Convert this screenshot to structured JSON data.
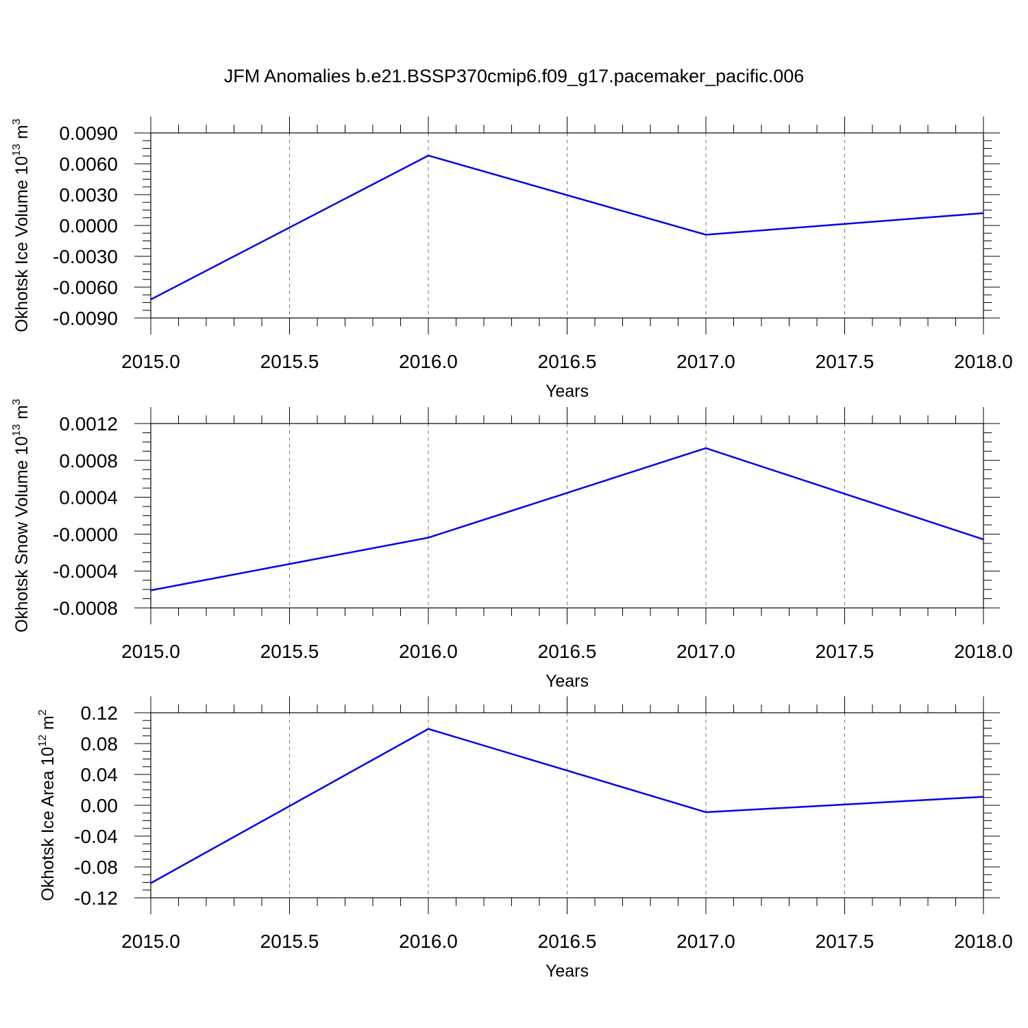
{
  "title": "JFM Anomalies b.e21.BSSP370cmip6.f09_g17.pacemaker_pacific.006",
  "line_color": "#0000ee",
  "chart_data": [
    {
      "type": "line",
      "ylabel": "Okhotsk Ice Volume 10",
      "ylabel_exp": "13",
      "ylabel_unit": "m",
      "ylabel_unit_exp": "3",
      "xlabel": "Years",
      "xlim": [
        2015.0,
        2018.0
      ],
      "ylim": [
        -0.009,
        0.009
      ],
      "x_ticks": [
        "2015.0",
        "2015.5",
        "2016.0",
        "2016.5",
        "2017.0",
        "2017.5",
        "2018.0"
      ],
      "y_ticks": [
        "0.0090",
        "0.0060",
        "0.0030",
        "0.0000",
        "-0.0030",
        "-0.0060",
        "-0.0090"
      ],
      "grid": "vertical dashed",
      "x": [
        2015,
        2016,
        2017,
        2018
      ],
      "y": [
        -0.0072,
        0.0068,
        -0.0009,
        0.0012
      ]
    },
    {
      "type": "line",
      "ylabel": "Okhotsk Snow Volume 10",
      "ylabel_exp": "13",
      "ylabel_unit": "m",
      "ylabel_unit_exp": "3",
      "xlabel": "Years",
      "xlim": [
        2015.0,
        2018.0
      ],
      "ylim": [
        -0.0009,
        0.0012
      ],
      "x_ticks": [
        "2015.0",
        "2015.5",
        "2016.0",
        "2016.5",
        "2017.0",
        "2017.5",
        "2018.0"
      ],
      "y_ticks": [
        "0.0012",
        "0.0008",
        "0.0004",
        "-0.0000",
        "-0.0004",
        "-0.0008"
      ],
      "grid": "vertical dashed",
      "x": [
        2015,
        2016,
        2017,
        2018
      ],
      "y": [
        -0.0007,
        -0.0001,
        0.00092,
        -0.00012
      ]
    },
    {
      "type": "line",
      "ylabel": "Okhotsk Ice Area 10",
      "ylabel_exp": "12",
      "ylabel_unit": "m",
      "ylabel_unit_exp": "2",
      "xlabel": "Years",
      "xlim": [
        2015.0,
        2018.0
      ],
      "ylim": [
        -0.12,
        0.12
      ],
      "x_ticks": [
        "2015.0",
        "2015.5",
        "2016.0",
        "2016.5",
        "2017.0",
        "2017.5",
        "2018.0"
      ],
      "y_ticks": [
        "0.12",
        "0.08",
        "0.04",
        "0.00",
        "-0.04",
        "-0.08",
        "-0.12"
      ],
      "grid": "vertical dashed",
      "x": [
        2015,
        2016,
        2017,
        2018
      ],
      "y": [
        -0.101,
        0.099,
        -0.009,
        0.011
      ]
    }
  ]
}
